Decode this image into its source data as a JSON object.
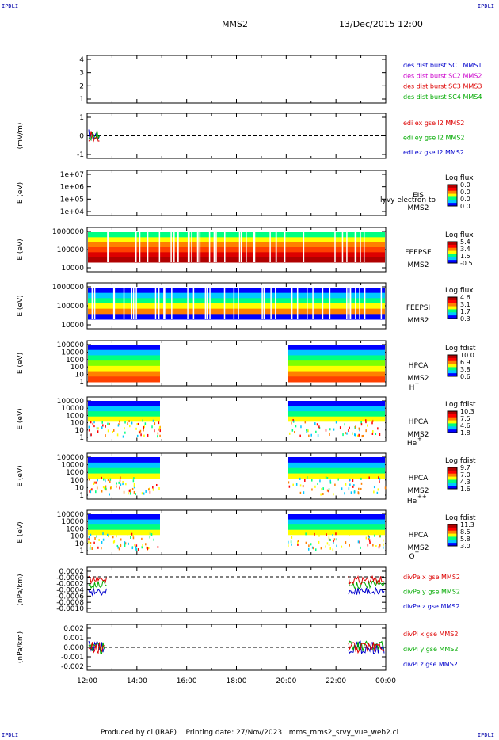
{
  "header": {
    "corner_label": "IPDLI",
    "spacecraft": "MMS2",
    "date": "13/Dec/2015 12:00"
  },
  "footer": {
    "produced_by": "Produced by cl (IRAP)",
    "printing_date": "Printing date: 27/Nov/2023",
    "filename": "mms_mms2_srvy_vue_web2.cl"
  },
  "time_axis": {
    "ticks": [
      "12:00",
      "14:00",
      "16:00",
      "18:00",
      "20:00",
      "22:00",
      "00:00"
    ]
  },
  "panels": [
    {
      "id": "p1",
      "yticks": [
        "4",
        "3",
        "2",
        "1"
      ],
      "legend": [
        {
          "text": "des dist burst SC1 MMS1",
          "color": "#0000cc"
        },
        {
          "text": "des dist burst SC2 MMS2",
          "color": "#cc00cc"
        },
        {
          "text": "des dist burst SC3 MMS3",
          "color": "#dd0000"
        },
        {
          "text": "des dist burst SC4 MMS4",
          "color": "#00aa00"
        }
      ]
    },
    {
      "id": "p2",
      "ylabel": "(mV/m)",
      "yticks": [
        "1",
        "0",
        "-1"
      ],
      "legend": [
        {
          "text": "edi ex gse l2 MMS2",
          "color": "#dd0000"
        },
        {
          "text": "edi ey gse l2 MMS2",
          "color": "#00aa00"
        },
        {
          "text": "edi ez gse l2 MMS2",
          "color": "#0000cc"
        }
      ]
    },
    {
      "id": "p3",
      "ylabel": "E (eV)",
      "yticks": [
        "1e+07",
        "1e+06",
        "1e+05",
        "1e+04"
      ],
      "inst": [
        "EIS",
        "MMS2"
      ],
      "overlay": "lyvy electron to",
      "cbar_title": "Log flux",
      "cbar_ticks": [
        "0.0",
        "0.0",
        "0.0",
        "0.0"
      ]
    },
    {
      "id": "p4",
      "ylabel": "E (eV)",
      "yticks": [
        "1000000",
        "100000",
        "10000"
      ],
      "inst": [
        "FEEPSE",
        "MMS2"
      ],
      "cbar_title": "Log flux",
      "cbar_ticks": [
        "5.4",
        "3.4",
        "1.5",
        "-0.5"
      ]
    },
    {
      "id": "p5",
      "ylabel": "E (eV)",
      "yticks": [
        "1000000",
        "100000",
        "10000"
      ],
      "inst": [
        "FEEPSI",
        "MMS2"
      ],
      "cbar_title": "Log flux",
      "cbar_ticks": [
        "4.6",
        "3.1",
        "1.7",
        "0.3"
      ]
    },
    {
      "id": "p6",
      "ylabel": "E (eV)",
      "yticks": [
        "100000",
        "10000",
        "1000",
        "100",
        "10",
        "1"
      ],
      "inst": [
        "HPCA",
        "MMS2"
      ],
      "species": "H",
      "species_sup": "+",
      "cbar_title": "Log fdist",
      "cbar_ticks": [
        "10.0",
        "6.9",
        "3.8",
        "0.6"
      ]
    },
    {
      "id": "p7",
      "ylabel": "E (eV)",
      "yticks": [
        "100000",
        "10000",
        "1000",
        "100",
        "10",
        "1"
      ],
      "inst": [
        "HPCA",
        "MMS2"
      ],
      "species": "He",
      "species_sup": "+",
      "cbar_title": "Log fdist",
      "cbar_ticks": [
        "10.3",
        "7.5",
        "4.6",
        "1.8"
      ]
    },
    {
      "id": "p8",
      "ylabel": "E (eV)",
      "yticks": [
        "100000",
        "10000",
        "1000",
        "100",
        "10",
        "1"
      ],
      "inst": [
        "HPCA",
        "MMS2"
      ],
      "species": "He",
      "species_sup": "++",
      "cbar_title": "Log fdist",
      "cbar_ticks": [
        "9.7",
        "7.0",
        "4.3",
        "1.6"
      ]
    },
    {
      "id": "p9",
      "ylabel": "E (eV)",
      "yticks": [
        "100000",
        "10000",
        "1000",
        "100",
        "10",
        "1"
      ],
      "inst": [
        "HPCA",
        "MMS2"
      ],
      "species": "O",
      "species_sup": "+",
      "cbar_title": "Log fdist",
      "cbar_ticks": [
        "11.3",
        "8.5",
        "5.8",
        "3.0"
      ]
    },
    {
      "id": "p10",
      "ylabel": "(nPa/km)",
      "yticks": [
        "0.0002",
        "-0.0000",
        "-0.0002",
        "-0.0004",
        "-0.0006",
        "-0.0008",
        "-0.0010"
      ],
      "legend": [
        {
          "text": "divPe x gse MMS2",
          "color": "#dd0000"
        },
        {
          "text": "divPe y gse MMS2",
          "color": "#00aa00"
        },
        {
          "text": "divPe z gse MMS2",
          "color": "#0000cc"
        }
      ]
    },
    {
      "id": "p11",
      "ylabel": "(nPa/km)",
      "yticks": [
        "0.002",
        "0.001",
        "0.000",
        "-0.001",
        "-0.002"
      ],
      "legend": [
        {
          "text": "divPi x gse MMS2",
          "color": "#dd0000"
        },
        {
          "text": "divPi y gse MMS2",
          "color": "#00aa00"
        },
        {
          "text": "divPi z gse MMS2",
          "color": "#0000cc"
        }
      ]
    }
  ],
  "colors": {
    "rainbow": [
      "#0000ff",
      "#00c8ff",
      "#00ff80",
      "#ffff00",
      "#ff8000",
      "#ff0000",
      "#b00000"
    ]
  }
}
